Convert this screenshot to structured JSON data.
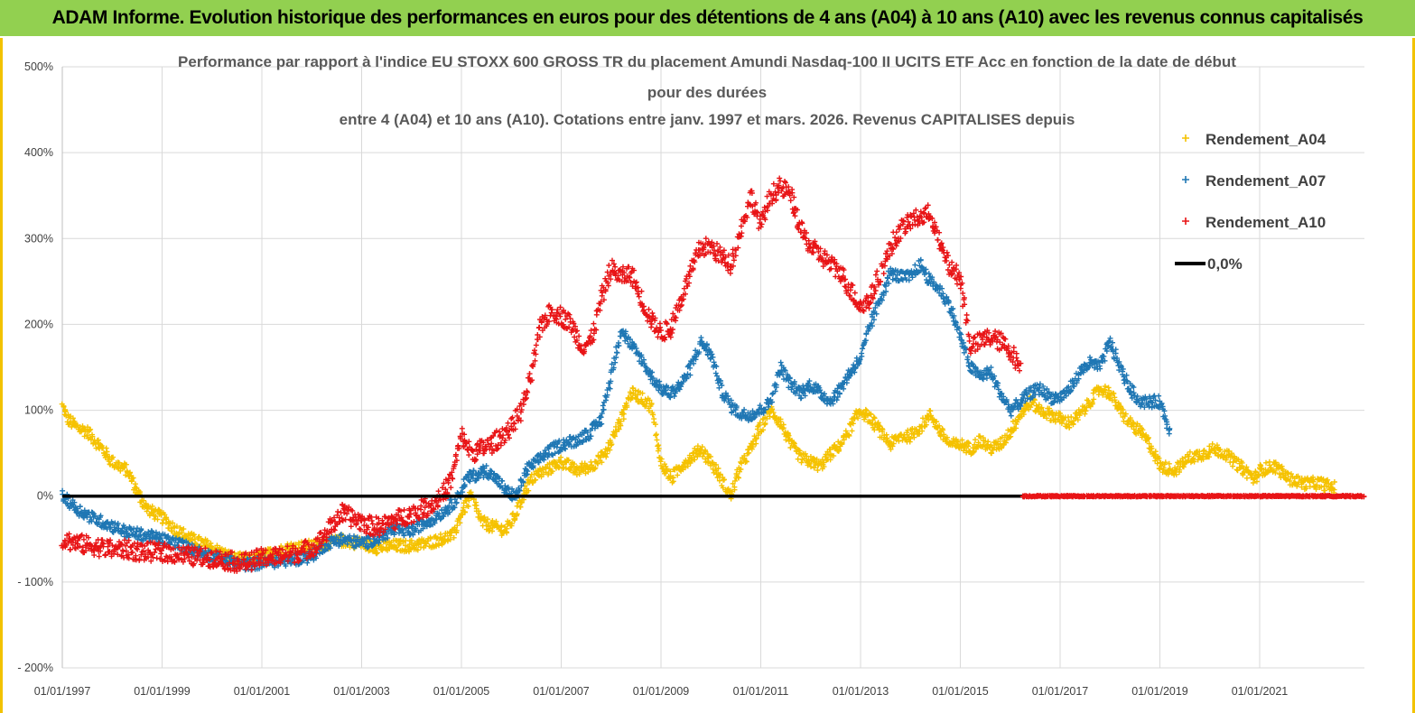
{
  "header": {
    "title": "ADAM Informe. Evolution historique des performances en euros pour des détentions de 4 ans (A04) à 10 ans (A10) avec les revenus connus capitalisés",
    "bg_color": "#92d050"
  },
  "chart_data": {
    "type": "scatter",
    "title_lines": [
      "Performance par rapport à l'indice EU STOXX 600 GROSS TR  du placement Amundi Nasdaq-100 II UCITS ETF Acc en fonction de la date de début",
      "pour des durées",
      "entre 4 (A04) et 10 ans (A10). Cotations entre janv. 1997 et mars. 2026. Revenus CAPITALISES depuis"
    ],
    "ylim": [
      -200,
      500
    ],
    "y_ticks": [
      -200,
      -100,
      0,
      100,
      200,
      300,
      400,
      500
    ],
    "y_tick_labels": [
      "- 200%",
      "- 100%",
      "0%",
      "100%",
      "200%",
      "300%",
      "400%",
      "500%"
    ],
    "xlim": [
      1997.0,
      2023.1
    ],
    "x_ticks": [
      1997,
      1999,
      2001,
      2003,
      2005,
      2007,
      2009,
      2011,
      2013,
      2015,
      2017,
      2019,
      2021
    ],
    "x_tick_labels": [
      "01/01/1997",
      "01/01/1999",
      "01/01/2001",
      "01/01/2003",
      "01/01/2005",
      "01/01/2007",
      "01/01/2009",
      "01/01/2011",
      "01/01/2013",
      "01/01/2015",
      "01/01/2017",
      "01/01/2019",
      "01/01/2021"
    ],
    "grid": true,
    "legend_position": "right",
    "series": [
      {
        "name": "Rendement_A04",
        "color": "#f5c200",
        "marker": "+",
        "x": [
          1997.0,
          1997.1,
          1997.3,
          1997.5,
          1997.8,
          1998.0,
          1998.3,
          1998.5,
          1998.7,
          1999.0,
          1999.3,
          1999.6,
          2000.0,
          2000.4,
          2000.8,
          2001.0,
          2001.3,
          2001.6,
          2002.0,
          2002.3,
          2002.6,
          2003.0,
          2003.3,
          2003.6,
          2004.0,
          2004.3,
          2004.6,
          2004.85,
          2005.0,
          2005.2,
          2005.4,
          2005.6,
          2005.9,
          2006.1,
          2006.3,
          2006.5,
          2006.7,
          2007.0,
          2007.3,
          2007.6,
          2007.9,
          2008.2,
          2008.4,
          2008.6,
          2008.8,
          2009.0,
          2009.2,
          2009.4,
          2009.6,
          2009.8,
          2010.0,
          2010.2,
          2010.4,
          2010.6,
          2010.8,
          2011.0,
          2011.2,
          2011.4,
          2011.6,
          2011.8,
          2012.0,
          2012.2,
          2012.4,
          2012.6,
          2012.8,
          2013.0,
          2013.2,
          2013.4,
          2013.6,
          2013.8,
          2014.0,
          2014.2,
          2014.4,
          2014.6,
          2014.8,
          2015.0,
          2015.2,
          2015.4,
          2015.6,
          2015.8,
          2016.0,
          2016.2,
          2016.4,
          2016.6,
          2016.8,
          2017.0,
          2017.2,
          2017.4,
          2017.6,
          2017.8,
          2018.0,
          2018.2,
          2018.4,
          2018.6,
          2018.8,
          2019.0,
          2019.3,
          2019.6,
          2019.9,
          2020.1,
          2020.3,
          2020.6,
          2020.9,
          2021.0,
          2021.3,
          2021.6,
          2021.9,
          2022.2,
          2022.5
        ],
        "y": [
          105,
          90,
          80,
          75,
          55,
          40,
          30,
          5,
          -15,
          -25,
          -40,
          -50,
          -60,
          -72,
          -75,
          -70,
          -65,
          -60,
          -58,
          -55,
          -52,
          -55,
          -60,
          -58,
          -58,
          -55,
          -50,
          -45,
          -20,
          0,
          -30,
          -35,
          -40,
          -20,
          10,
          25,
          30,
          40,
          30,
          35,
          50,
          90,
          120,
          115,
          105,
          40,
          20,
          35,
          45,
          55,
          40,
          20,
          0,
          35,
          55,
          80,
          100,
          85,
          60,
          45,
          40,
          35,
          50,
          60,
          80,
          100,
          90,
          75,
          60,
          70,
          70,
          80,
          95,
          75,
          60,
          60,
          55,
          65,
          55,
          60,
          75,
          95,
          110,
          100,
          95,
          90,
          85,
          95,
          110,
          125,
          120,
          100,
          85,
          75,
          60,
          35,
          30,
          45,
          50,
          55,
          50,
          35,
          20,
          30,
          35,
          20,
          15,
          15,
          10
        ]
      },
      {
        "name": "Rendement_A07",
        "color": "#1f77b4",
        "marker": "+",
        "x": [
          1997.0,
          1997.3,
          1997.6,
          1998.0,
          1998.3,
          1998.6,
          1999.0,
          1999.3,
          1999.6,
          2000.0,
          2000.3,
          2000.6,
          2001.0,
          2001.3,
          2001.6,
          2002.0,
          2002.3,
          2002.6,
          2003.0,
          2003.3,
          2003.6,
          2004.0,
          2004.3,
          2004.6,
          2004.9,
          2005.1,
          2005.3,
          2005.5,
          2005.7,
          2005.9,
          2006.1,
          2006.3,
          2006.5,
          2006.7,
          2007.0,
          2007.3,
          2007.6,
          2007.8,
          2008.0,
          2008.2,
          2008.4,
          2008.6,
          2008.8,
          2009.0,
          2009.2,
          2009.4,
          2009.6,
          2009.8,
          2010.0,
          2010.2,
          2010.4,
          2010.6,
          2010.8,
          2011.0,
          2011.2,
          2011.4,
          2011.6,
          2011.8,
          2012.0,
          2012.2,
          2012.4,
          2012.6,
          2012.8,
          2013.0,
          2013.2,
          2013.4,
          2013.6,
          2013.8,
          2014.0,
          2014.2,
          2014.4,
          2014.6,
          2014.8,
          2015.0,
          2015.2,
          2015.4,
          2015.6,
          2015.8,
          2016.0,
          2016.2,
          2016.4,
          2016.6,
          2016.8,
          2017.0,
          2017.2,
          2017.4,
          2017.6,
          2017.8,
          2018.0,
          2018.2,
          2018.4,
          2018.6,
          2018.8,
          2019.0,
          2019.2
        ],
        "y": [
          0,
          -15,
          -25,
          -35,
          -42,
          -45,
          -50,
          -55,
          -62,
          -70,
          -75,
          -80,
          -78,
          -76,
          -74,
          -70,
          -55,
          -50,
          -55,
          -50,
          -40,
          -40,
          -30,
          -20,
          -5,
          20,
          25,
          30,
          20,
          5,
          0,
          30,
          40,
          50,
          60,
          65,
          75,
          90,
          140,
          195,
          175,
          160,
          140,
          125,
          120,
          130,
          150,
          180,
          165,
          125,
          105,
          95,
          95,
          100,
          110,
          150,
          130,
          120,
          130,
          120,
          110,
          125,
          145,
          160,
          200,
          230,
          260,
          255,
          255,
          270,
          250,
          240,
          220,
          185,
          150,
          140,
          145,
          120,
          100,
          110,
          120,
          125,
          115,
          115,
          125,
          145,
          155,
          150,
          180,
          150,
          125,
          110,
          110,
          110,
          75
        ]
      },
      {
        "name": "Rendement_A10",
        "color": "#e81416",
        "marker": "+",
        "x": [
          1997.0,
          1997.3,
          1997.6,
          1998.0,
          1998.3,
          1998.6,
          1999.0,
          1999.3,
          1999.6,
          2000.0,
          2000.3,
          2000.6,
          2001.0,
          2001.3,
          2001.6,
          2002.0,
          2002.2,
          2002.4,
          2002.6,
          2002.8,
          2003.0,
          2003.2,
          2003.4,
          2003.6,
          2003.8,
          2004.0,
          2004.2,
          2004.4,
          2004.6,
          2004.8,
          2005.0,
          2005.2,
          2005.4,
          2005.6,
          2005.8,
          2006.0,
          2006.2,
          2006.4,
          2006.6,
          2006.8,
          2007.0,
          2007.2,
          2007.4,
          2007.6,
          2007.8,
          2008.0,
          2008.2,
          2008.4,
          2008.6,
          2008.8,
          2009.0,
          2009.2,
          2009.4,
          2009.6,
          2009.8,
          2010.0,
          2010.2,
          2010.4,
          2010.6,
          2010.8,
          2011.0,
          2011.2,
          2011.4,
          2011.6,
          2011.8,
          2012.0,
          2012.2,
          2012.4,
          2012.6,
          2012.8,
          2013.0,
          2013.2,
          2013.4,
          2013.6,
          2013.8,
          2014.0,
          2014.2,
          2014.4,
          2014.6,
          2014.8,
          2015.0,
          2015.2,
          2015.4,
          2015.6,
          2015.8,
          2016.0,
          2016.2
        ],
        "y": [
          -50,
          -55,
          -58,
          -62,
          -62,
          -65,
          -65,
          -68,
          -70,
          -72,
          -75,
          -78,
          -72,
          -70,
          -68,
          -60,
          -50,
          -35,
          -20,
          -25,
          -30,
          -35,
          -35,
          -30,
          -25,
          -20,
          -15,
          -10,
          0,
          20,
          70,
          50,
          55,
          60,
          70,
          80,
          100,
          140,
          200,
          215,
          210,
          200,
          175,
          180,
          230,
          265,
          255,
          260,
          230,
          205,
          190,
          195,
          230,
          260,
          290,
          290,
          280,
          270,
          310,
          350,
          315,
          350,
          360,
          350,
          310,
          290,
          280,
          270,
          260,
          240,
          220,
          230,
          260,
          290,
          310,
          320,
          325,
          330,
          290,
          265,
          255,
          175,
          180,
          185,
          180,
          170,
          150
        ]
      },
      {
        "name": "0,0%",
        "color": "#000000",
        "marker": "line",
        "x": [
          1997.0,
          2016.25
        ],
        "y": [
          0,
          0
        ]
      }
    ],
    "zero_segment": {
      "name": "Rendement_A10 (0%)",
      "color": "#e81416",
      "x": [
        2016.25,
        2023.1
      ],
      "y": [
        0,
        0
      ]
    },
    "legend": [
      "Rendement_A04",
      "Rendement_A07",
      "Rendement_A10",
      "0,0%"
    ]
  }
}
